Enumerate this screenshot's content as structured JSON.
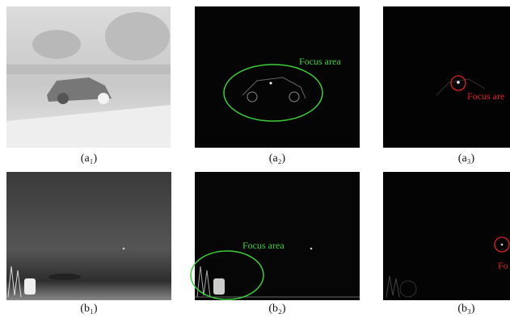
{
  "panels": [
    {
      "label": "(a₁)"
    },
    {
      "label": "(a₂)",
      "annotation": "Focus area"
    },
    {
      "label": "(a₃)",
      "annotation": "Focus are"
    },
    {
      "label": "(b₁)"
    },
    {
      "label": "(b₂)",
      "annotation": "Focus area"
    },
    {
      "label": "(b₃)",
      "annotation": "Fo"
    }
  ]
}
